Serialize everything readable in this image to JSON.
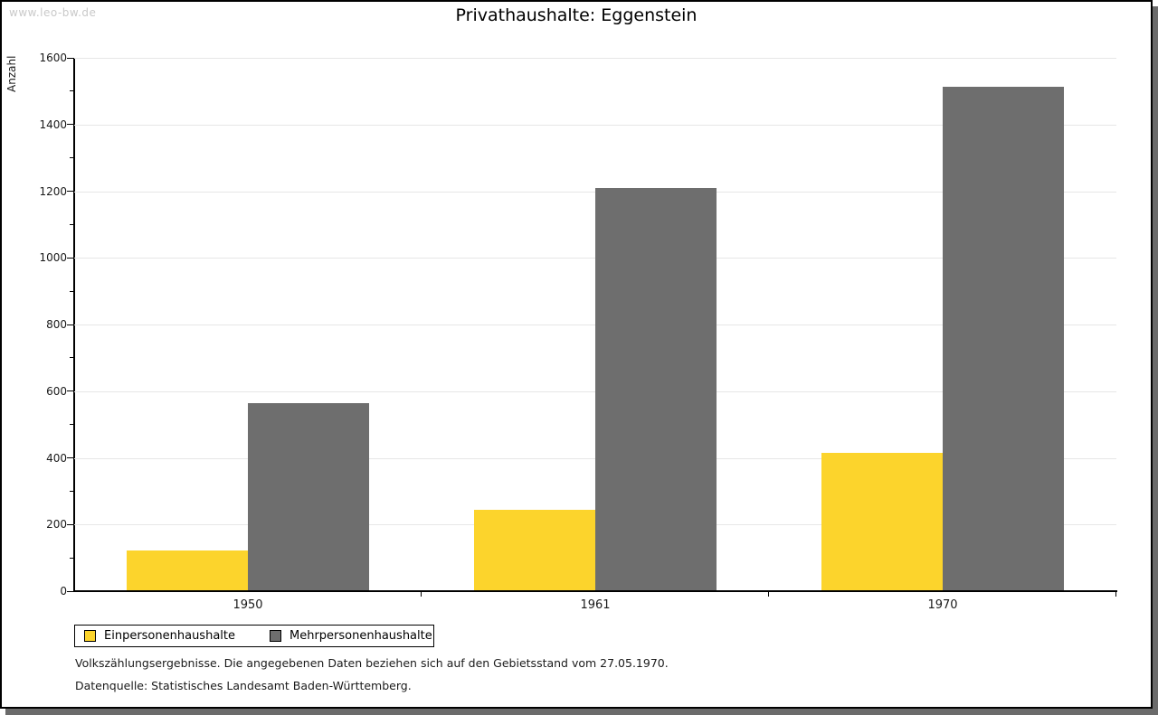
{
  "watermark": "www.leo-bw.de",
  "title": "Privathaushalte: Eggenstein",
  "chart_data": {
    "type": "bar",
    "title": "Privathaushalte: Eggenstein",
    "xlabel": "",
    "ylabel": "Anzahl",
    "categories": [
      "1950",
      "1961",
      "1970"
    ],
    "series": [
      {
        "name": "Einpersonenhaushalte",
        "color": "#fcd42c",
        "values": [
          120,
          242,
          415
        ]
      },
      {
        "name": "Mehrpersonenhaushalte",
        "color": "#6e6e6e",
        "values": [
          563,
          1212,
          1515
        ]
      }
    ],
    "ylim": [
      0,
      1600
    ],
    "ytick_step": 200,
    "minor_tick_step": 100,
    "grid": true,
    "legend_position": "bottom-left"
  },
  "footnotes": [
    "Volkszählungsergebnisse. Die angegebenen Daten beziehen sich auf den Gebietsstand vom 27.05.1970.",
    "Datenquelle: Statistisches Landesamt Baden-Württemberg."
  ]
}
